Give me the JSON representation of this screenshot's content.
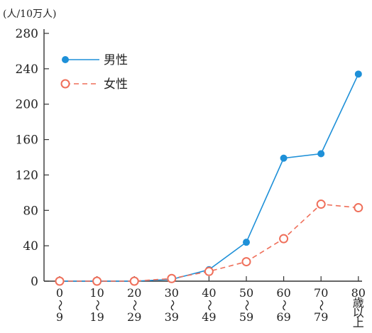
{
  "chart_data": {
    "type": "line",
    "unit_label": "(人/10万人)",
    "y_ticks": [
      0,
      40,
      80,
      120,
      160,
      200,
      240,
      280
    ],
    "ylim": [
      0,
      280
    ],
    "categories": [
      {
        "lines": [
          "0",
          "〜",
          "9"
        ]
      },
      {
        "lines": [
          "10",
          "〜",
          "19"
        ]
      },
      {
        "lines": [
          "20",
          "〜",
          "29"
        ]
      },
      {
        "lines": [
          "30",
          "〜",
          "39"
        ]
      },
      {
        "lines": [
          "40",
          "〜",
          "49"
        ]
      },
      {
        "lines": [
          "50",
          "〜",
          "59"
        ]
      },
      {
        "lines": [
          "60",
          "〜",
          "69"
        ]
      },
      {
        "lines": [
          "70",
          "〜",
          "79"
        ]
      },
      {
        "lines": [
          "80",
          "歳",
          "以",
          "上"
        ]
      }
    ],
    "series": [
      {
        "name": "男性",
        "color": "#1e90d8",
        "marker": "filled-circle",
        "line": "solid",
        "values": [
          0,
          0,
          0,
          2,
          13,
          44,
          139,
          144,
          234
        ]
      },
      {
        "name": "女性",
        "color": "#ef6f5a",
        "marker": "open-circle",
        "line": "dashed",
        "values": [
          0,
          0,
          0,
          3,
          11,
          22,
          48,
          87,
          83
        ]
      }
    ],
    "grid": false,
    "legend_position": "top-left"
  }
}
